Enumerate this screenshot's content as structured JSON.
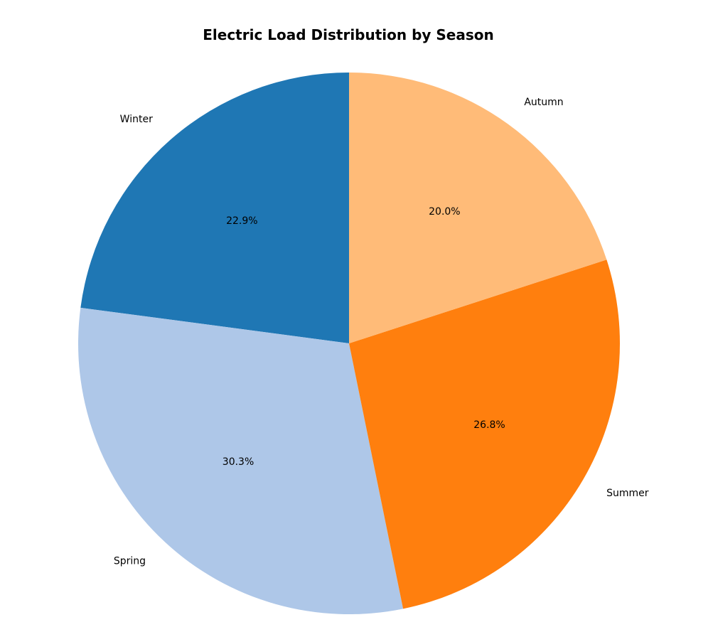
{
  "chart_data": {
    "type": "pie",
    "title": "Electric Load Distribution by Season",
    "labels": [
      "Winter",
      "Spring",
      "Summer",
      "Autumn"
    ],
    "values": [
      22.9,
      30.3,
      26.8,
      20.0
    ],
    "percent_labels": [
      "22.9%",
      "30.3%",
      "26.8%",
      "20.0%"
    ],
    "colors": [
      "#1f77b4",
      "#aec7e8",
      "#ff7f0e",
      "#ffbb78"
    ],
    "start_angle_deg": 90,
    "direction": "counterclockwise",
    "legend": "none"
  }
}
